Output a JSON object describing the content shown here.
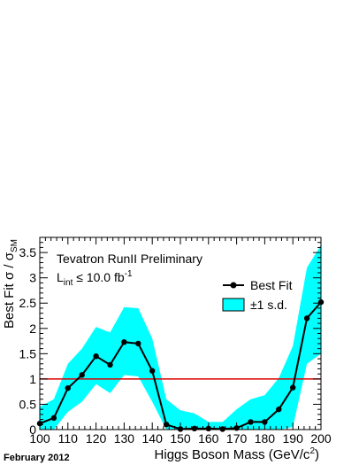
{
  "chart_data": {
    "type": "line",
    "experiment_label": "Tevatron RunII Preliminary",
    "lumi_label": {
      "prefix": "L",
      "sub": "int",
      "rest": " ≤ 10.0 fb",
      "sup": "-1"
    },
    "xlabel": {
      "main": "Higgs Boson Mass (GeV/c",
      "sup": "2",
      "close": ")"
    },
    "ylabel": {
      "main": "Best Fit σ / σ",
      "sub": "SM"
    },
    "date_label": "February 2012",
    "xlim": [
      100,
      200
    ],
    "ylim": [
      0,
      3.8
    ],
    "xticks": [
      100,
      110,
      120,
      130,
      140,
      150,
      160,
      170,
      180,
      190,
      200
    ],
    "yticks": [
      0,
      0.5,
      1,
      1.5,
      2,
      2.5,
      3,
      3.5
    ],
    "ytick_labels": [
      "0",
      "0.5",
      "1",
      "1.5",
      "2",
      "2.5",
      "3",
      "3.5"
    ],
    "reference_line": {
      "y": 1,
      "color": "#dd0000"
    },
    "legend": [
      {
        "name": "Best Fit",
        "kind": "line-marker"
      },
      {
        "name": "±1 s.d.",
        "kind": "band",
        "color": "#00ffff"
      }
    ],
    "x": [
      100,
      105,
      110,
      115,
      120,
      125,
      130,
      135,
      140,
      145,
      150,
      155,
      160,
      165,
      170,
      175,
      180,
      185,
      190,
      195,
      200
    ],
    "series": [
      {
        "name": "Best Fit",
        "values": [
          0.12,
          0.23,
          0.82,
          1.08,
          1.45,
          1.28,
          1.73,
          1.7,
          1.16,
          0.1,
          0.01,
          0.02,
          0.02,
          0.01,
          0.03,
          0.15,
          0.15,
          0.4,
          0.83,
          2.2,
          2.52
        ],
        "color": "#000000"
      }
    ],
    "band": {
      "name": "±1 s.d.",
      "lower": [
        0.0,
        0.0,
        0.35,
        0.55,
        0.9,
        0.72,
        1.08,
        1.05,
        0.55,
        0.0,
        0.0,
        0.0,
        0.0,
        0.0,
        0.0,
        0.0,
        0.0,
        0.0,
        0.05,
        1.3,
        1.5
      ],
      "upper": [
        0.45,
        0.6,
        1.3,
        1.6,
        2.03,
        1.92,
        2.42,
        2.4,
        1.8,
        0.6,
        0.38,
        0.32,
        0.15,
        0.15,
        0.4,
        0.6,
        0.68,
        1.02,
        1.65,
        3.2,
        3.65
      ],
      "color": "#00ffff"
    }
  }
}
